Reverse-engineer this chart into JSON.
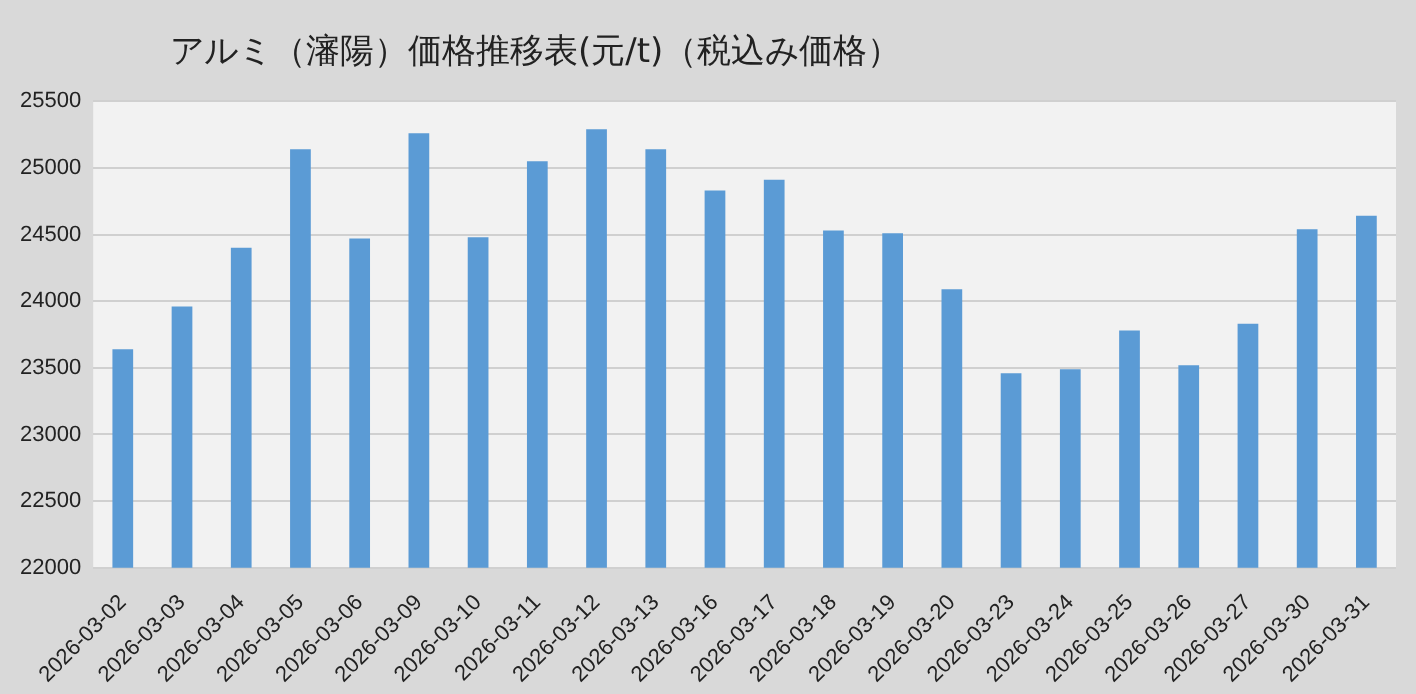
{
  "chart_data": {
    "type": "bar",
    "title": "アルミ（瀋陽）価格推移表(元/t)（税込み価格）",
    "categories": [
      "2026-03-02",
      "2026-03-03",
      "2026-03-04",
      "2026-03-05",
      "2026-03-06",
      "2026-03-09",
      "2026-03-10",
      "2026-03-11",
      "2026-03-12",
      "2026-03-13",
      "2026-03-16",
      "2026-03-17",
      "2026-03-18",
      "2026-03-19",
      "2026-03-20",
      "2026-03-23",
      "2026-03-24",
      "2026-03-25",
      "2026-03-26",
      "2026-03-27",
      "2026-03-30",
      "2026-03-31"
    ],
    "values": [
      23640,
      23960,
      24400,
      25140,
      24470,
      25260,
      24480,
      25050,
      25290,
      25140,
      24830,
      24910,
      24530,
      24510,
      24090,
      23460,
      23490,
      23780,
      23520,
      23830,
      24540,
      24640
    ],
    "color": "#5b9bd5",
    "ylim": [
      22000,
      25500
    ],
    "yticks": [
      22000,
      22500,
      23000,
      23500,
      24000,
      24500,
      25000,
      25500
    ],
    "grid": "y"
  }
}
